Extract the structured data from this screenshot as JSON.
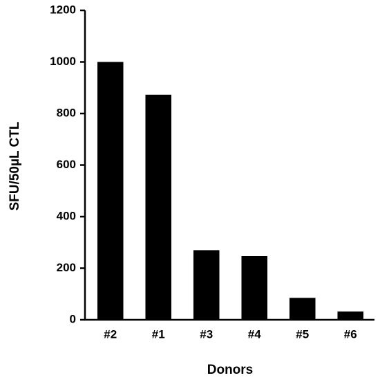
{
  "chart_data": {
    "type": "bar",
    "x_label": "Donors",
    "y_label": "SFU/50µL CTL",
    "categories": [
      "#2",
      "#1",
      "#3",
      "#4",
      "#5",
      "#6"
    ],
    "values": [
      1000,
      873,
      270,
      247,
      85,
      32
    ],
    "color": "#000000",
    "ylim": [
      0,
      1200
    ],
    "yticks": [
      0,
      200,
      400,
      600,
      800,
      1000,
      1200
    ],
    "grid": false
  }
}
